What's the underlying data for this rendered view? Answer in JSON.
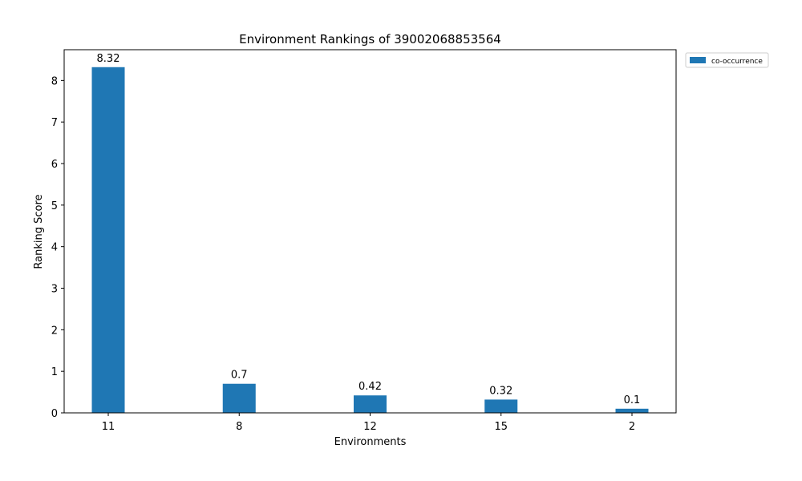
{
  "chart_data": {
    "type": "bar",
    "title": "Environment Rankings of 39002068853564",
    "xlabel": "Environments",
    "ylabel": "Ranking Score",
    "categories": [
      "11",
      "8",
      "12",
      "15",
      "2"
    ],
    "series": [
      {
        "name": "co-occurrence",
        "values": [
          8.32,
          0.7,
          0.42,
          0.32,
          0.1
        ],
        "color": "#1f77b4"
      }
    ],
    "data_labels": [
      "8.32",
      "0.7",
      "0.42",
      "0.32",
      "0.1"
    ],
    "yticks": [
      "0",
      "1",
      "2",
      "3",
      "4",
      "5",
      "6",
      "7",
      "8"
    ],
    "ylim": [
      0,
      8.74
    ],
    "grid": false,
    "legend_position": "outside-top-right"
  }
}
